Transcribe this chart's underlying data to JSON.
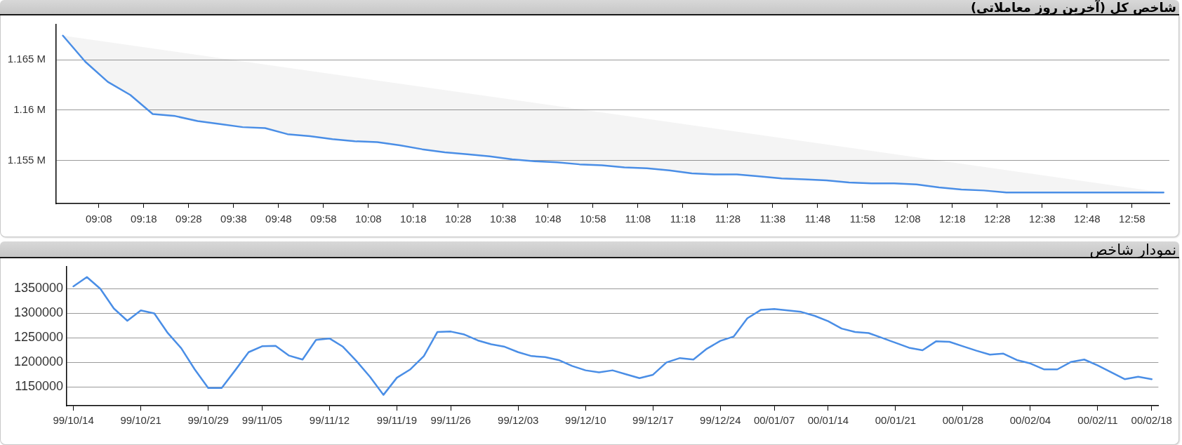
{
  "chart_data": [
    {
      "type": "area",
      "title": "شاخص کل (آخرین روز معاملاتی)",
      "color": "#4a8ee6",
      "x": [
        9,
        9.0833,
        9.1667,
        9.25,
        9.3333,
        9.4167,
        9.5,
        9.5833,
        9.6667,
        9.75,
        9.8333,
        9.9167,
        10,
        10.0833,
        10.1667,
        10.25,
        10.3333,
        10.4167,
        10.5,
        10.5833,
        10.6667,
        10.75,
        10.8333,
        10.9167,
        11,
        11.0833,
        11.1667,
        11.25,
        11.3333,
        11.4167,
        11.5,
        11.5833,
        11.6667,
        11.75,
        11.8333,
        11.9167,
        12,
        12.0833,
        12.1667,
        12.25,
        12.3333,
        12.4167,
        12.5,
        12.5833,
        12.6667,
        12.75,
        12.8333,
        12.9167,
        13,
        13.0833
      ],
      "values": [
        1.1674,
        1.1648,
        1.1628,
        1.1615,
        1.1596,
        1.1594,
        1.1589,
        1.1586,
        1.1583,
        1.1582,
        1.1576,
        1.1574,
        1.1571,
        1.1569,
        1.1568,
        1.1565,
        1.1561,
        1.1558,
        1.1556,
        1.1554,
        1.1551,
        1.1549,
        1.1548,
        1.1546,
        1.1545,
        1.1543,
        1.1542,
        1.154,
        1.1537,
        1.1536,
        1.1536,
        1.1534,
        1.1532,
        1.1531,
        1.153,
        1.1528,
        1.1527,
        1.1527,
        1.1526,
        1.1523,
        1.1521,
        1.152,
        1.1518,
        1.1518,
        1.1518,
        1.1518,
        1.1518,
        1.1518,
        1.1518,
        1.1518
      ],
      "xlim": [
        8.975,
        13.105
      ],
      "xticks": [
        {
          "value": 9.1333,
          "label": "09:08"
        },
        {
          "value": 9.3,
          "label": "09:18"
        },
        {
          "value": 9.4667,
          "label": "09:28"
        },
        {
          "value": 9.6333,
          "label": "09:38"
        },
        {
          "value": 9.8,
          "label": "09:48"
        },
        {
          "value": 9.9667,
          "label": "09:58"
        },
        {
          "value": 10.1333,
          "label": "10:08"
        },
        {
          "value": 10.3,
          "label": "10:18"
        },
        {
          "value": 10.4667,
          "label": "10:28"
        },
        {
          "value": 10.6333,
          "label": "10:38"
        },
        {
          "value": 10.8,
          "label": "10:48"
        },
        {
          "value": 10.9667,
          "label": "10:58"
        },
        {
          "value": 11.1333,
          "label": "11:08"
        },
        {
          "value": 11.3,
          "label": "11:18"
        },
        {
          "value": 11.4667,
          "label": "11:28"
        },
        {
          "value": 11.6333,
          "label": "11:38"
        },
        {
          "value": 11.8,
          "label": "11:48"
        },
        {
          "value": 11.9667,
          "label": "11:58"
        },
        {
          "value": 12.1333,
          "label": "12:08"
        },
        {
          "value": 12.3,
          "label": "12:18"
        },
        {
          "value": 12.4667,
          "label": "12:28"
        },
        {
          "value": 12.6333,
          "label": "12:38"
        },
        {
          "value": 12.8,
          "label": "12:48"
        },
        {
          "value": 12.9667,
          "label": "12:58"
        }
      ],
      "ylim": [
        1.1507,
        1.1685
      ],
      "yticks": [
        {
          "value": 1.155,
          "label": "1.155 M"
        },
        {
          "value": 1.16,
          "label": "1.16 M"
        },
        {
          "value": 1.165,
          "label": "1.165 M"
        }
      ],
      "grid": "y"
    },
    {
      "type": "line",
      "title": "نمودار شاخص",
      "color": "#4a8ee6",
      "categories": [
        "99/10/14",
        null,
        null,
        null,
        null,
        "99/10/21",
        null,
        null,
        null,
        null,
        "99/10/29",
        null,
        null,
        null,
        "99/11/05",
        null,
        null,
        null,
        null,
        "99/11/12",
        null,
        null,
        null,
        null,
        "99/11/19",
        null,
        null,
        null,
        "99/11/26",
        null,
        null,
        null,
        null,
        "99/12/03",
        null,
        null,
        null,
        null,
        "99/12/10",
        null,
        null,
        null,
        null,
        "99/12/17",
        null,
        null,
        null,
        null,
        "99/12/24",
        null,
        null,
        null,
        "00/01/07",
        null,
        null,
        null,
        "00/01/14",
        null,
        null,
        null,
        null,
        "00/01/21",
        null,
        null,
        null,
        null,
        "00/01/28",
        null,
        null,
        null,
        null,
        "00/02/04",
        null,
        null,
        null,
        null,
        "00/02/11",
        null,
        null,
        null,
        "00/02/18"
      ],
      "values": [
        1355000,
        1374000,
        1350000,
        1310000,
        1285000,
        1306000,
        1300000,
        1260000,
        1229000,
        1186000,
        1148000,
        1148000,
        1184000,
        1221000,
        1233000,
        1234000,
        1214000,
        1206000,
        1246000,
        1249000,
        1232000,
        1203000,
        1171000,
        1134000,
        1169000,
        1186000,
        1213000,
        1262000,
        1263000,
        1257000,
        1245000,
        1237000,
        1232000,
        1221000,
        1213000,
        1211000,
        1205000,
        1193000,
        1184000,
        1180000,
        1184000,
        1176000,
        1168000,
        1175000,
        1200000,
        1209000,
        1206000,
        1228000,
        1244000,
        1253000,
        1290000,
        1307000,
        1309000,
        1306000,
        1303000,
        1295000,
        1284000,
        1269000,
        1262000,
        1260000,
        1250000,
        1240000,
        1230000,
        1225000,
        1243000,
        1242000,
        1233000,
        1224000,
        1216000,
        1218000,
        1205000,
        1198000,
        1186000,
        1186000,
        1201000,
        1206000,
        1194000,
        1180000,
        1166000,
        1171000,
        1166000
      ],
      "ylim": [
        1112000,
        1395000
      ],
      "yticks": [
        1150000,
        1200000,
        1250000,
        1300000,
        1350000
      ],
      "grid": "y"
    }
  ]
}
